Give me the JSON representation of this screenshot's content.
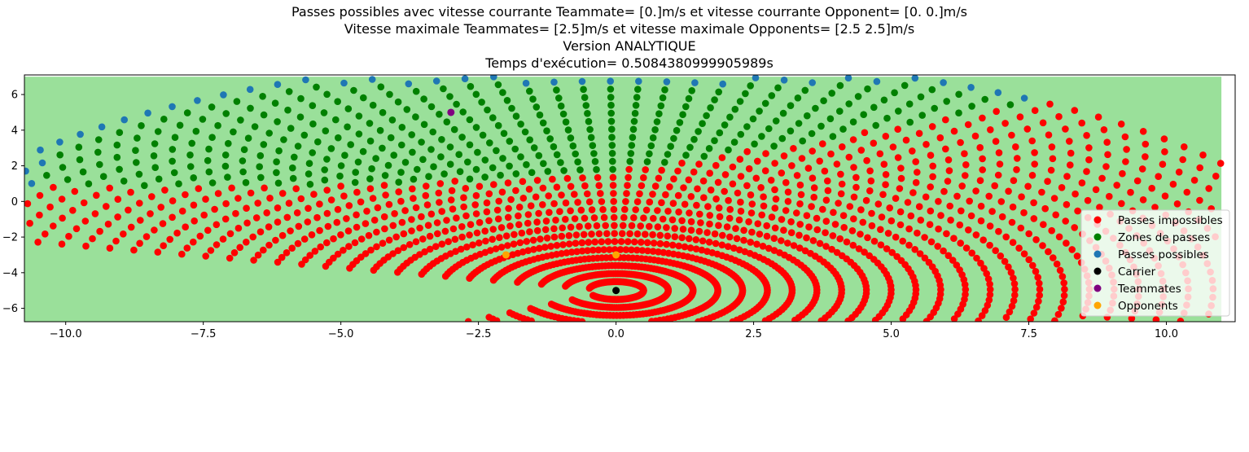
{
  "chart_data": {
    "type": "scatter",
    "title_lines": [
      "Passes possibles avec vitesse courrante Teammate= [0.]m/s et vitesse courrante Opponent= [0. 0.]m/s",
      "Vitesse maximale Teammates= [2.5]m/s et vitesse maximale Opponents= [2.5 2.5]m/s",
      "Version ANALYTIQUE",
      "Temps d'exécution= 0.5084380999905989s"
    ],
    "xlabel": "",
    "ylabel": "",
    "xlim": [
      -10.75,
      11.25
    ],
    "ylim": [
      -6.75,
      7.1
    ],
    "xticks": [
      -10.0,
      -7.5,
      -5.0,
      -2.5,
      0.0,
      2.5,
      5.0,
      7.5,
      10.0
    ],
    "xtick_labels": [
      "−10.0",
      "−7.5",
      "−5.0",
      "−2.5",
      "0.0",
      "2.5",
      "5.0",
      "7.5",
      "10.0"
    ],
    "yticks": [
      -6,
      -4,
      -2,
      0,
      2,
      4,
      6
    ],
    "ytick_labels": [
      "−6",
      "−4",
      "−2",
      "0",
      "2",
      "4",
      "6"
    ],
    "grid": false,
    "legend_position": "lower-right",
    "field": {
      "x": [
        -10.75,
        11
      ],
      "y": [
        -6.75,
        7
      ],
      "color": "#9ae09a"
    },
    "carrier": {
      "x": 0.0,
      "y": -5.0
    },
    "teammates": [
      {
        "x": -3.0,
        "y": 5.0
      }
    ],
    "opponents": [
      {
        "x": -2.0,
        "y": -3.0
      },
      {
        "x": 0.0,
        "y": -3.0
      }
    ],
    "series": [
      {
        "name": "Passes impossibles",
        "color": "#ff0000"
      },
      {
        "name": "Zones de passes",
        "color": "#008000"
      },
      {
        "name": "Passes possibles",
        "color": "#1f77b4"
      },
      {
        "name": "Carrier",
        "color": "#000000"
      },
      {
        "name": "Teammates",
        "color": "#800080"
      },
      {
        "name": "Opponents",
        "color": "#ffa500"
      }
    ],
    "sampling": {
      "angle_from_deg": -147,
      "angle_to_deg": 167,
      "angle_step_deg": 2.5,
      "r_min": 0.5,
      "r_step": 0.45,
      "r_max": 13.5,
      "speed": 2.5,
      "ball_speed": 6.0
    }
  }
}
